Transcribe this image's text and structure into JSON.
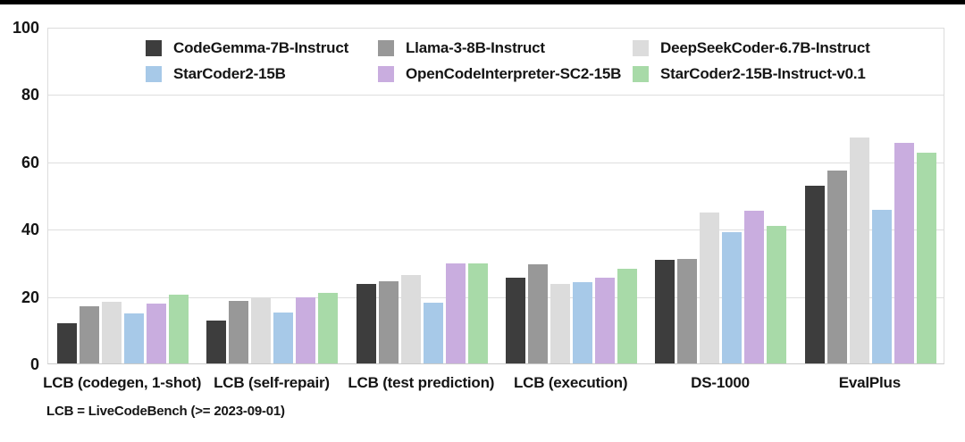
{
  "top_border_color": "#000000",
  "chart_data": {
    "type": "bar",
    "title": "",
    "xlabel": "",
    "ylabel": "",
    "ylim": [
      0,
      100
    ],
    "yticks": [
      0,
      20,
      40,
      60,
      80,
      100
    ],
    "grid": true,
    "legend_position": "top-left, two rows of three",
    "categories": [
      "LCB (codegen, 1-shot)",
      "LCB (self-repair)",
      "LCB (test prediction)",
      "LCB (execution)",
      "DS-1000",
      "EvalPlus"
    ],
    "series": [
      {
        "name": "CodeGemma-7B-Instruct",
        "color": "#3d3d3d",
        "values": [
          11.9,
          12.7,
          23.7,
          25.4,
          30.8,
          52.9
        ]
      },
      {
        "name": "Llama-3-8B-Instruct",
        "color": "#989898",
        "values": [
          16.9,
          18.5,
          24.4,
          29.5,
          31.0,
          57.3
        ]
      },
      {
        "name": "DeepSeekCoder-6.7B-Instruct",
        "color": "#dcdcdc",
        "values": [
          18.3,
          19.7,
          26.3,
          23.7,
          44.8,
          67.1
        ]
      },
      {
        "name": "StarCoder2-15B",
        "color": "#a7c9e8",
        "values": [
          14.8,
          15.2,
          18.1,
          24.1,
          39.0,
          45.6
        ]
      },
      {
        "name": "OpenCodeInterpreter-SC2-15B",
        "color": "#c9addf",
        "values": [
          17.9,
          19.6,
          29.6,
          25.6,
          45.3,
          65.5
        ]
      },
      {
        "name": "StarCoder2-15B-Instruct-v0.1",
        "color": "#a8daa8",
        "values": [
          20.4,
          20.9,
          29.8,
          28.1,
          40.8,
          62.6
        ]
      }
    ],
    "footnote": "LCB = LiveCodeBench (>= 2023-09-01)"
  }
}
